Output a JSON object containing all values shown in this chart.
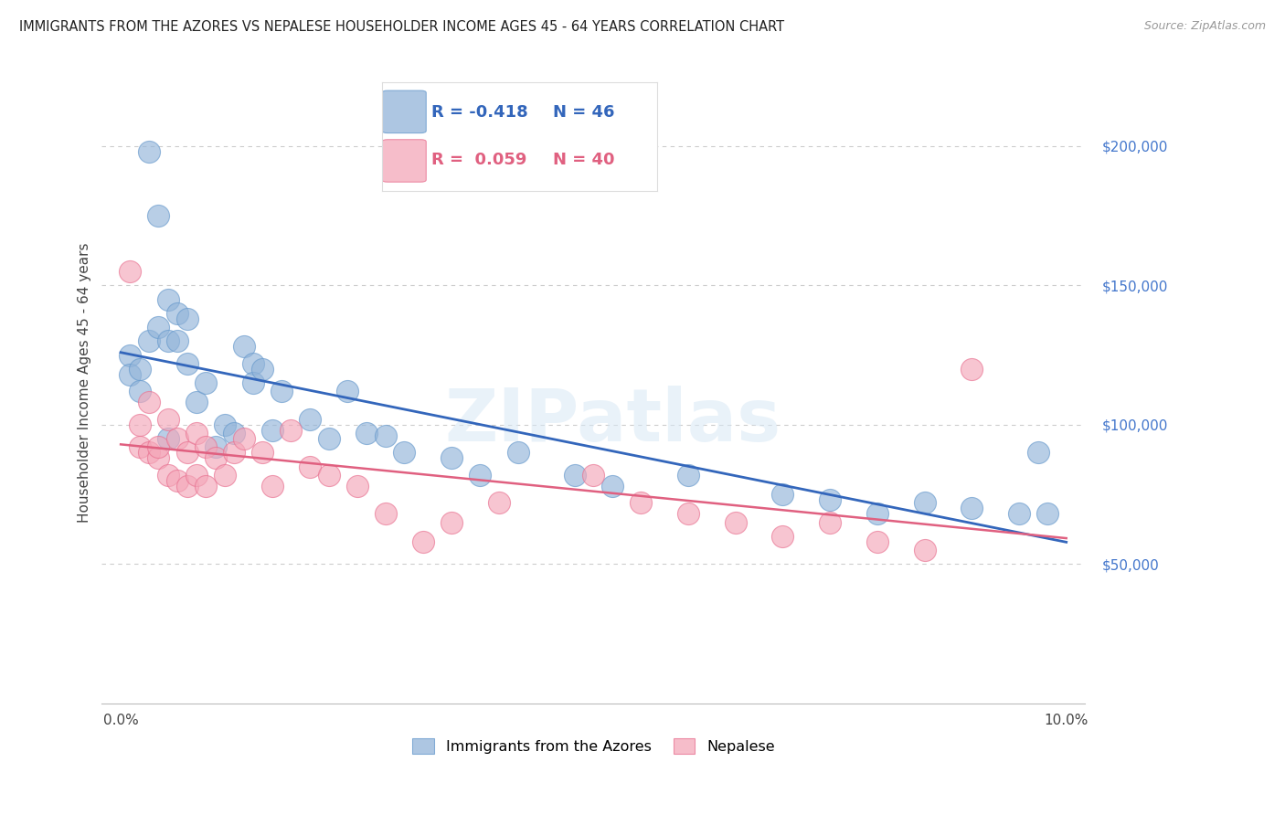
{
  "title": "IMMIGRANTS FROM THE AZORES VS NEPALESE HOUSEHOLDER INCOME AGES 45 - 64 YEARS CORRELATION CHART",
  "source": "Source: ZipAtlas.com",
  "ylabel": "Householder Income Ages 45 - 64 years",
  "legend_blue_r": "-0.418",
  "legend_blue_n": "46",
  "legend_pink_r": "0.059",
  "legend_pink_n": "40",
  "legend_label_blue": "Immigrants from the Azores",
  "legend_label_pink": "Nepalese",
  "blue_color": "#92b4d9",
  "pink_color": "#f4a7b9",
  "blue_edge_color": "#6699CC",
  "pink_edge_color": "#e87090",
  "blue_line_color": "#3366BB",
  "pink_line_color": "#e06080",
  "watermark": "ZIPatlas",
  "blue_x": [
    0.001,
    0.001,
    0.002,
    0.002,
    0.003,
    0.003,
    0.004,
    0.004,
    0.005,
    0.005,
    0.005,
    0.006,
    0.006,
    0.007,
    0.007,
    0.008,
    0.009,
    0.01,
    0.011,
    0.012,
    0.013,
    0.014,
    0.014,
    0.015,
    0.016,
    0.017,
    0.02,
    0.022,
    0.024,
    0.026,
    0.028,
    0.03,
    0.035,
    0.038,
    0.042,
    0.048,
    0.052,
    0.06,
    0.07,
    0.075,
    0.08,
    0.085,
    0.09,
    0.095,
    0.097,
    0.098
  ],
  "blue_y": [
    125000,
    118000,
    120000,
    112000,
    130000,
    198000,
    175000,
    135000,
    145000,
    130000,
    95000,
    140000,
    130000,
    138000,
    122000,
    108000,
    115000,
    92000,
    100000,
    97000,
    128000,
    122000,
    115000,
    120000,
    98000,
    112000,
    102000,
    95000,
    112000,
    97000,
    96000,
    90000,
    88000,
    82000,
    90000,
    82000,
    78000,
    82000,
    75000,
    73000,
    68000,
    72000,
    70000,
    68000,
    90000,
    68000
  ],
  "pink_x": [
    0.001,
    0.002,
    0.002,
    0.003,
    0.003,
    0.004,
    0.004,
    0.005,
    0.005,
    0.006,
    0.006,
    0.007,
    0.007,
    0.008,
    0.008,
    0.009,
    0.009,
    0.01,
    0.011,
    0.012,
    0.013,
    0.015,
    0.016,
    0.018,
    0.02,
    0.022,
    0.025,
    0.028,
    0.032,
    0.035,
    0.04,
    0.05,
    0.055,
    0.06,
    0.065,
    0.07,
    0.075,
    0.08,
    0.085,
    0.09
  ],
  "pink_y": [
    155000,
    100000,
    92000,
    108000,
    90000,
    88000,
    92000,
    102000,
    82000,
    95000,
    80000,
    90000,
    78000,
    97000,
    82000,
    92000,
    78000,
    88000,
    82000,
    90000,
    95000,
    90000,
    78000,
    98000,
    85000,
    82000,
    78000,
    68000,
    58000,
    65000,
    72000,
    82000,
    72000,
    68000,
    65000,
    60000,
    65000,
    58000,
    55000,
    120000
  ]
}
